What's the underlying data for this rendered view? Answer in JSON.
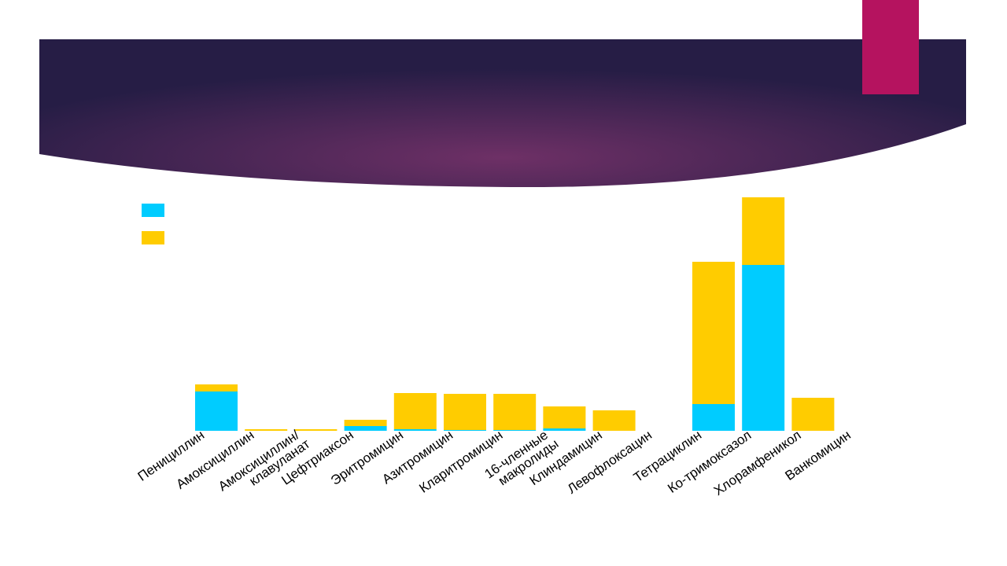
{
  "chart_data": {
    "type": "stacked_bar",
    "categories": [
      "Пенициллин",
      "Амоксициллин",
      "Амоксициллин/ клавуланат",
      "Цефтриаксон",
      "Эритромицин",
      "Азитромицин",
      "Кларитромицин",
      "16-членные макролиды",
      "Клиндамицин",
      "Левофлоксацин",
      "Тетрациклин",
      "Ко-тримоксазол",
      "Хлорамфеникол",
      "Ванкомицин"
    ],
    "series": [
      {
        "color": "#00ccff",
        "values": [
          50,
          0,
          0,
          6,
          2,
          1,
          1,
          3,
          0,
          0,
          34,
          211,
          0,
          0
        ]
      },
      {
        "color": "#ffcc00",
        "values": [
          9,
          2,
          2,
          8,
          46,
          46,
          46,
          28,
          26,
          0,
          181,
          86,
          42,
          0
        ]
      }
    ],
    "ylim": [
      0,
      300
    ]
  }
}
